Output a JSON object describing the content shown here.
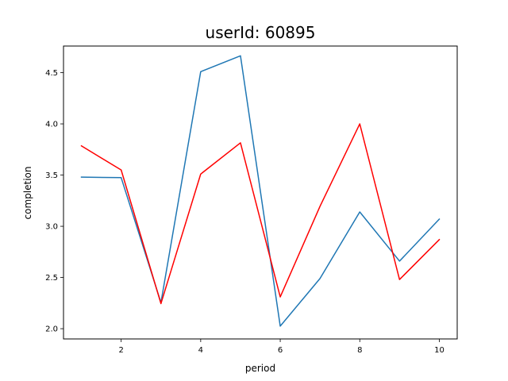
{
  "chart_data": {
    "type": "line",
    "title": "userId: 60895",
    "xlabel": "period",
    "ylabel": "completion",
    "x": [
      1,
      2,
      3,
      4,
      5,
      6,
      7,
      8,
      9,
      10
    ],
    "xlim": [
      0.55,
      10.45
    ],
    "ylim": [
      1.9,
      4.76
    ],
    "xticks": [
      2,
      4,
      6,
      8,
      10
    ],
    "yticks": [
      2.0,
      2.5,
      3.0,
      3.5,
      4.0,
      4.5
    ],
    "xtick_labels": [
      "2",
      "4",
      "6",
      "8",
      "10"
    ],
    "ytick_labels": [
      "2.0",
      "2.5",
      "3.0",
      "3.5",
      "4.0",
      "4.5"
    ],
    "grid": false,
    "series": [
      {
        "color": "#1f77b4",
        "values": [
          3.48,
          3.475,
          2.255,
          4.51,
          4.665,
          2.025,
          2.49,
          3.14,
          2.66,
          3.07
        ]
      },
      {
        "color": "#ff0000",
        "values": [
          3.785,
          3.55,
          2.245,
          3.51,
          3.815,
          2.31,
          3.195,
          4.0,
          2.48,
          2.87
        ]
      }
    ]
  }
}
